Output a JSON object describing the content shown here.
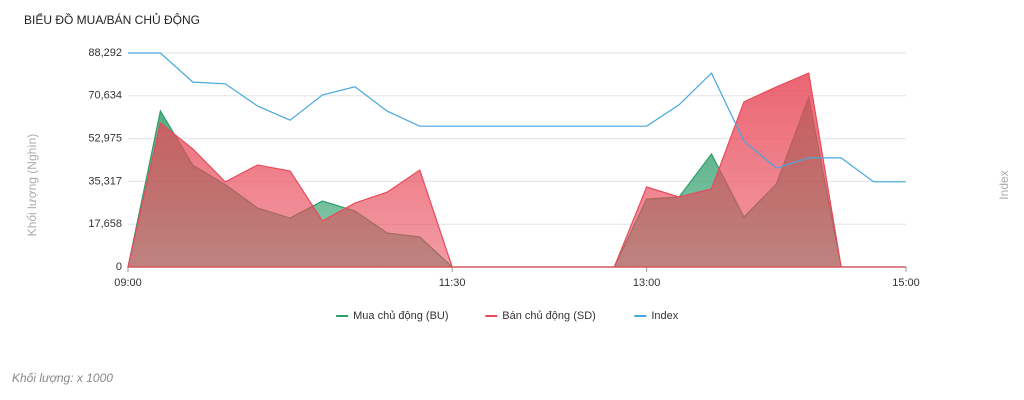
{
  "chart_data": {
    "type": "area",
    "title": "BIỂU ĐỒ MUA/BÁN CHỦ ĐỘNG",
    "y_label": "Khối lượng (Nghìn)",
    "y2_label": "Index",
    "footnote": "Khối lượng: x 1000",
    "categories": [
      "09:00",
      null,
      null,
      null,
      null,
      null,
      null,
      null,
      null,
      null,
      "11:30",
      null,
      null,
      null,
      null,
      null,
      "13:00",
      null,
      null,
      null,
      null,
      null,
      null,
      null,
      "15:00"
    ],
    "ylim": [
      0,
      88292
    ],
    "yticks": [
      0,
      {
        "value": 17658,
        "label": "17,658"
      },
      {
        "value": 35317,
        "label": "35,317"
      },
      {
        "value": 52975,
        "label": "52,975"
      },
      {
        "value": 70634,
        "label": "70,634"
      },
      {
        "value": 88292,
        "label": "88,292"
      }
    ],
    "y2lim": [
      1230,
      1280
    ],
    "grid": true,
    "legend": "bottom",
    "series": [
      {
        "name": "Mua chủ động (BU)",
        "color": "#2e9e6a",
        "type": "area",
        "values": [
          0,
          64400,
          42000,
          34000,
          24300,
          20200,
          27200,
          23100,
          14000,
          12400,
          0,
          0,
          0,
          0,
          0,
          0,
          28000,
          28900,
          46600,
          20600,
          34200,
          70100,
          0,
          0,
          0
        ]
      },
      {
        "name": "Bán chủ động (SD)",
        "color": "#e84a5a",
        "type": "area",
        "values": [
          0,
          59400,
          48700,
          35100,
          42100,
          39600,
          19000,
          26400,
          30900,
          40000,
          0,
          0,
          0,
          0,
          0,
          0,
          33000,
          28900,
          32200,
          68100,
          74300,
          80000,
          0,
          0,
          0
        ]
      },
      {
        "name": "Index",
        "color": "#47a7de",
        "type": "line",
        "axis": "y2",
        "values": [
          1280,
          1280,
          1273.2,
          1272.8,
          1267.6,
          1264.3,
          1270.2,
          1272.1,
          1266.4,
          1262.9,
          1262.9,
          1262.9,
          1262.9,
          1262.9,
          1262.9,
          1262.9,
          1262.9,
          1267.9,
          1275.3,
          1259.4,
          1253.1,
          1255.5,
          1255.5,
          1249.9,
          1249.9
        ]
      }
    ]
  }
}
